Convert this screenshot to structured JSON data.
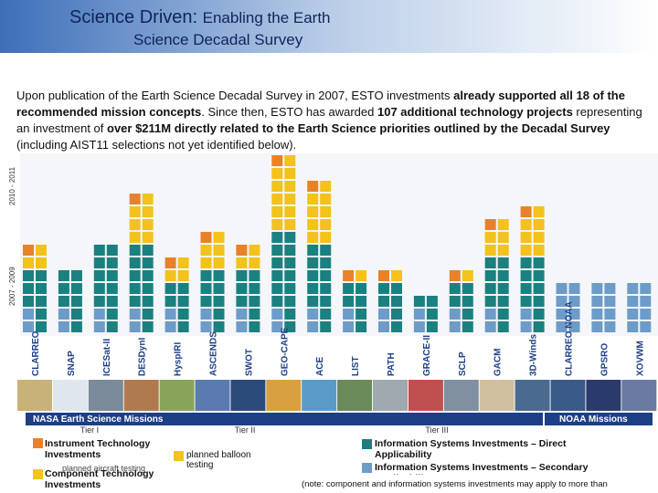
{
  "header": {
    "title": "Science Driven:",
    "title_rest": "Enabling the Earth",
    "subtitle": "Science Decadal Survey"
  },
  "paragraph": [
    "Upon publication of the Earth Science Decadal Survey in 2007, ESTO investments ",
    "already supported all 18 of the recommended mission concepts",
    ". Since then, ESTO has awarded ",
    "107 additional technology projects",
    " representing an investment of ",
    "over $211M directly related to the Earth Science priorities outlined by the Decadal Survey",
    " (including AIST11 selections not yet identified below)."
  ],
  "period_labels": [
    "2010 - 2011",
    "2007 - 2009"
  ],
  "missions": [
    "CLARREO",
    "SNAP",
    "ICESat-II",
    "DESDynI",
    "HyspIRI",
    "ASCENDS",
    "SWOT",
    "GEO-CAPE",
    "ACE",
    "LIST",
    "PATH",
    "GRACE-II",
    "SCLP",
    "GACM",
    "3D-Winds",
    "CLARREO NOAA",
    "GPSRO",
    "XOVWM"
  ],
  "banners": [
    "NASA Earth Science Missions",
    "NOAA Missions"
  ],
  "tiers": [
    "Tier I",
    "Tier II",
    "Tier III"
  ],
  "legend": {
    "instrument": "Instrument Technology Investments",
    "aircraft": "planned aircraft testing",
    "component": "Component Technology Investments",
    "balloon": "planned balloon testing",
    "info_direct": "Information Systems Investments – Direct Applicability",
    "info_secondary": "Information Systems Investments – Secondary Applicability",
    "note": "(note: component and information systems investments may apply to more than"
  }
}
